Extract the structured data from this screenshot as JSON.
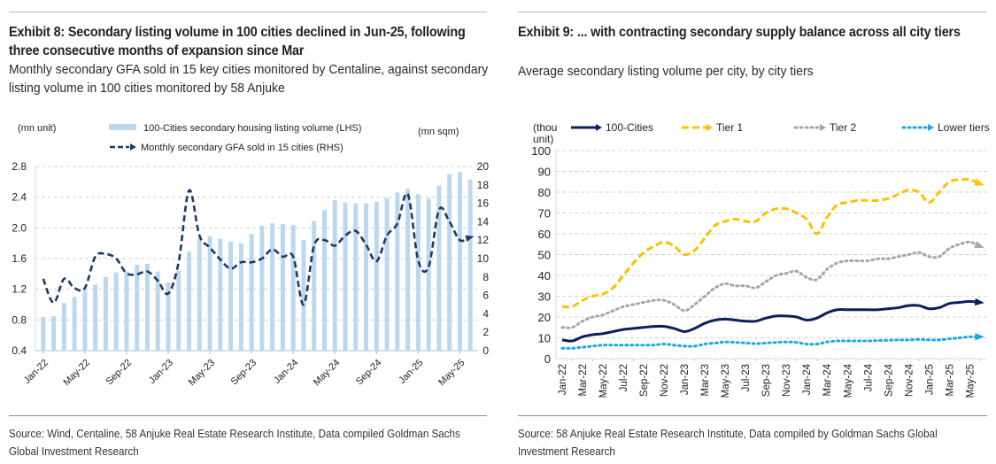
{
  "exhibit8": {
    "title": "Exhibit 8: Secondary listing volume in 100 cities declined in Jun-25, following three consecutive months of expansion since Mar",
    "subtitle": "Monthly secondary GFA sold in 15 key cities monitored by Centaline, against secondary listing volume in 100 cities monitored by 58 Anjuke",
    "source": "Source: Wind, Centaline, 58 Anjuke Real Estate Research Institute, Data compiled Goldman Sachs Global Investment Research"
  },
  "exhibit9": {
    "title": "Exhibit 9: ... with contracting secondary supply balance across all city tiers",
    "subtitle": "Average secondary listing volume per city, by city tiers",
    "source": "Source: 58 Anjuke Real Estate Research Institute, Data compiled by Goldman Sachs Global Investment Research"
  },
  "chart_data": [
    {
      "type": "bar",
      "title": "Exhibit 8",
      "ylabel": "(mn unit)",
      "y2label": "(mn sqm)",
      "ylim": [
        0.4,
        2.8
      ],
      "yticks": [
        "0.4",
        "0.8",
        "1.2",
        "1.6",
        "2.0",
        "2.4",
        "2.8"
      ],
      "y2lim": [
        0,
        20
      ],
      "y2ticks": [
        "0",
        "2",
        "4",
        "6",
        "8",
        "10",
        "12",
        "14",
        "16",
        "18",
        "20"
      ],
      "grid": true,
      "legend_position": "top",
      "x": [
        "Jan-22",
        "Feb-22",
        "Mar-22",
        "Apr-22",
        "May-22",
        "Jun-22",
        "Jul-22",
        "Aug-22",
        "Sep-22",
        "Oct-22",
        "Nov-22",
        "Dec-22",
        "Jan-23",
        "Feb-23",
        "Mar-23",
        "Apr-23",
        "May-23",
        "Jun-23",
        "Jul-23",
        "Aug-23",
        "Sep-23",
        "Oct-23",
        "Nov-23",
        "Dec-23",
        "Jan-24",
        "Feb-24",
        "Mar-24",
        "Apr-24",
        "May-24",
        "Jun-24",
        "Jul-24",
        "Aug-24",
        "Sep-24",
        "Oct-24",
        "Nov-24",
        "Dec-24",
        "Jan-25",
        "Feb-25",
        "Mar-25",
        "Apr-25",
        "May-25",
        "Jun-25"
      ],
      "xtick_labels": [
        "Jan-22",
        "May-22",
        "Sep-22",
        "Jan-23",
        "May-23",
        "Sep-23",
        "Jan-24",
        "May-24",
        "Sep-24",
        "Jan-25",
        "May-25"
      ],
      "series": [
        {
          "name": "100-Cities secondary housing listing volume (LHS)",
          "type": "bar",
          "axis": "left",
          "color": "#bdd7ee",
          "values": [
            0.84,
            0.85,
            1.02,
            1.1,
            1.19,
            1.26,
            1.36,
            1.42,
            1.43,
            1.52,
            1.53,
            1.43,
            1.29,
            1.44,
            1.69,
            1.87,
            1.89,
            1.86,
            1.82,
            1.8,
            1.92,
            2.03,
            2.06,
            2.05,
            2.04,
            1.84,
            2.09,
            2.23,
            2.36,
            2.33,
            2.32,
            2.32,
            2.34,
            2.39,
            2.46,
            2.51,
            2.44,
            2.38,
            2.55,
            2.7,
            2.73,
            2.63
          ]
        },
        {
          "name": "Monthly secondary GFA sold in 15 cities (RHS)",
          "type": "line",
          "style": "dashed",
          "axis": "right",
          "color": "#1f3864",
          "values": [
            7.8,
            5.2,
            7.8,
            6.8,
            6.8,
            10.2,
            10.5,
            10.0,
            8.4,
            8.3,
            8.6,
            7.6,
            6.2,
            9.6,
            17.4,
            12.5,
            11.2,
            9.9,
            8.9,
            9.6,
            9.6,
            10.0,
            11.0,
            10.2,
            10.2,
            5.0,
            11.4,
            12.0,
            11.4,
            12.5,
            13.0,
            11.5,
            9.7,
            12.5,
            13.8,
            17.0,
            9.8,
            9.1,
            15.3,
            14.0,
            12.0,
            12.3
          ]
        }
      ]
    },
    {
      "type": "line",
      "title": "Exhibit 9",
      "ylabel": "(thou unit)",
      "ylim": [
        0,
        100
      ],
      "yticks": [
        "0",
        "10",
        "20",
        "30",
        "40",
        "50",
        "60",
        "70",
        "80",
        "90",
        "100"
      ],
      "grid": true,
      "legend_position": "top",
      "x": [
        "Jan-22",
        "Feb-22",
        "Mar-22",
        "Apr-22",
        "May-22",
        "Jun-22",
        "Jul-22",
        "Aug-22",
        "Sep-22",
        "Oct-22",
        "Nov-22",
        "Dec-22",
        "Jan-23",
        "Feb-23",
        "Mar-23",
        "Apr-23",
        "May-23",
        "Jun-23",
        "Jul-23",
        "Aug-23",
        "Sep-23",
        "Oct-23",
        "Nov-23",
        "Dec-23",
        "Jan-24",
        "Feb-24",
        "Mar-24",
        "Apr-24",
        "May-24",
        "Jun-24",
        "Jul-24",
        "Aug-24",
        "Sep-24",
        "Oct-24",
        "Nov-24",
        "Dec-24",
        "Jan-25",
        "Feb-25",
        "Mar-25",
        "Apr-25",
        "May-25",
        "Jun-25"
      ],
      "xtick_labels": [
        "Jan-22",
        "Mar-22",
        "May-22",
        "Jul-22",
        "Sep-22",
        "Nov-22",
        "Jan-23",
        "Mar-23",
        "May-23",
        "Jul-23",
        "Sep-23",
        "Nov-23",
        "Jan-24",
        "Mar-24",
        "May-24",
        "Jul-24",
        "Sep-24",
        "Nov-24",
        "Jan-25",
        "Mar-25",
        "May-25"
      ],
      "series": [
        {
          "name": "100-Cities",
          "style": "solid",
          "color": "#0d1f5c",
          "values": [
            9,
            8.5,
            10.5,
            11.5,
            12,
            13,
            14,
            14.5,
            15,
            15.5,
            15.5,
            14.5,
            13,
            14.5,
            17,
            18.5,
            19,
            18.5,
            18,
            18,
            19.5,
            20.5,
            20.5,
            20,
            18.5,
            19.5,
            22,
            23.5,
            23.5,
            23.5,
            23.5,
            23.5,
            24,
            24.5,
            25.5,
            25.5,
            24,
            24.5,
            26.5,
            27,
            27.5,
            27
          ]
        },
        {
          "name": "Tier 1",
          "style": "dashed",
          "color": "#ffc000",
          "values": [
            25,
            25,
            28,
            30,
            31,
            34,
            40,
            46,
            51,
            54,
            56,
            54,
            50,
            52,
            58,
            64,
            66,
            67,
            66,
            66,
            70,
            72,
            72,
            70,
            67,
            60,
            68,
            74,
            75,
            76,
            76,
            76,
            77,
            79,
            81,
            80,
            75,
            80,
            85,
            86,
            86,
            84
          ]
        },
        {
          "name": "Tier 2",
          "style": "dotted",
          "color": "#a6a6a6",
          "values": [
            15,
            15,
            18,
            20,
            21,
            23,
            25,
            26,
            27,
            28,
            28,
            26,
            23,
            26,
            30,
            34,
            36,
            35,
            35,
            34,
            37,
            40,
            41,
            42,
            39,
            38,
            43,
            46,
            47,
            47,
            47,
            48,
            48,
            49,
            50,
            51,
            49,
            49,
            53,
            55,
            56,
            54
          ]
        },
        {
          "name": "Lower tiers",
          "style": "dotted",
          "color": "#1ea7e8",
          "values": [
            5,
            5,
            5.5,
            6,
            6.5,
            6.5,
            6.5,
            6.5,
            6.5,
            6.5,
            7,
            6.5,
            6,
            6,
            7,
            7.5,
            8,
            7.8,
            7.5,
            7.2,
            7.5,
            7.8,
            8,
            7.8,
            7,
            7,
            8,
            8.5,
            8.5,
            8.5,
            8.5,
            8.7,
            8.8,
            9,
            9,
            9.2,
            9,
            9,
            9.5,
            10,
            10.5,
            10.5
          ]
        }
      ]
    }
  ]
}
